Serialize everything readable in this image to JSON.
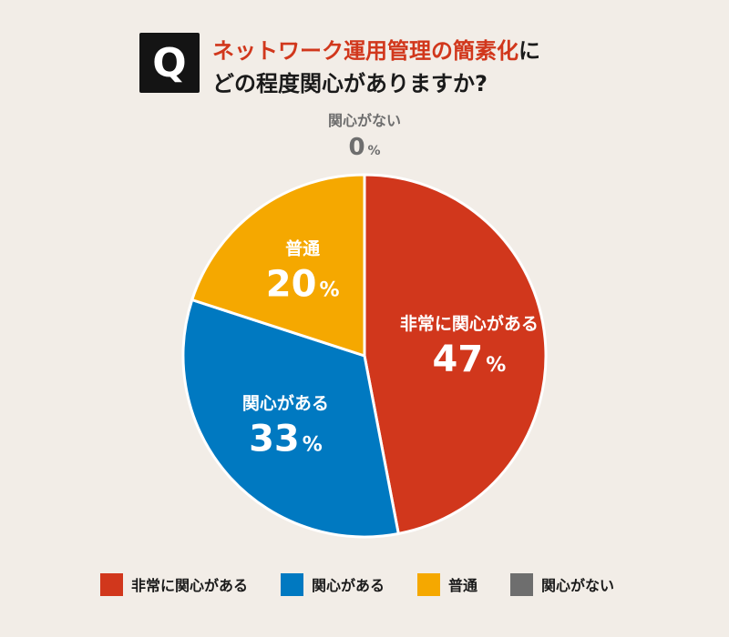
{
  "question": {
    "badge": "Q",
    "line1_highlight": "ネットワーク運用管理の簡素化",
    "line1_rest": "に",
    "line2": "どの程度関心がありますか?"
  },
  "chart_data": {
    "type": "pie",
    "categories": [
      "非常に関心がある",
      "関心がある",
      "普通",
      "関心がない"
    ],
    "values": [
      47,
      33,
      20,
      0
    ],
    "value_suffix": "%",
    "colors": [
      "#d1371c",
      "#0079c1",
      "#f5a800",
      "#6e6e6e"
    ],
    "legend_position": "bottom"
  }
}
